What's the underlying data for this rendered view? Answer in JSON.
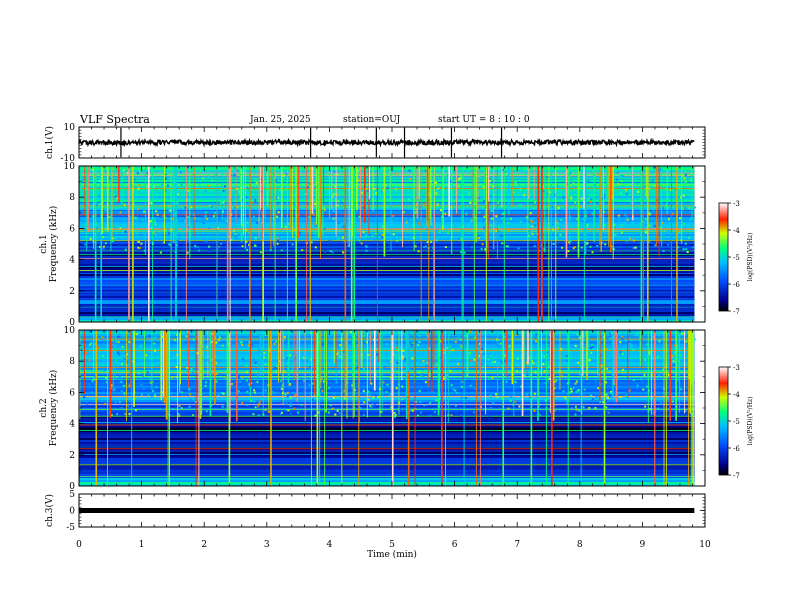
{
  "header": {
    "title": "VLF Spectra",
    "date": "Jan. 25, 2025",
    "station": "station=OUJ",
    "start": "start  UT =   8 : 10 : 0"
  },
  "colorbar": {
    "ticks": [
      "-3",
      "-4",
      "-5",
      "-6",
      "-7"
    ],
    "label": "log(PSD)(V²/Hz)"
  },
  "chart_data": [
    {
      "type": "line",
      "panel": "ch1-waveform",
      "ylabel": "ch.1(V)",
      "ylim": [
        -10,
        10
      ],
      "yticks": [
        "10",
        "-10"
      ],
      "baseline": 0,
      "spikes_min": [
        0.67,
        3.7,
        4.75,
        5.2,
        5.95,
        6.75
      ],
      "xlim": [
        0,
        10
      ]
    },
    {
      "type": "heatmap",
      "panel": "ch1-spectrogram",
      "ylabel": "ch.1 Frequency (kHz)",
      "ylim": [
        0,
        10
      ],
      "yticks": [
        "0",
        "2",
        "4",
        "6",
        "8",
        "10"
      ],
      "color_range": [
        -7,
        -3
      ],
      "xlim": [
        0,
        9.83
      ],
      "bands_khz": [
        {
          "lo": 0,
          "hi": 0.4,
          "v": -5.0
        },
        {
          "lo": 0.4,
          "hi": 1.2,
          "v": -6.4
        },
        {
          "lo": 1.2,
          "hi": 1.5,
          "v": -5.6
        },
        {
          "lo": 1.5,
          "hi": 2.5,
          "v": -6.3
        },
        {
          "lo": 2.5,
          "hi": 3.0,
          "v": -5.9
        },
        {
          "lo": 3.0,
          "hi": 4.6,
          "v": -6.5
        },
        {
          "lo": 4.6,
          "hi": 5.3,
          "v": -6.1
        },
        {
          "lo": 5.3,
          "hi": 7.2,
          "v": -5.4
        },
        {
          "lo": 7.2,
          "hi": 10,
          "v": -4.9
        }
      ]
    },
    {
      "type": "heatmap",
      "panel": "ch2-spectrogram",
      "ylabel": "ch.2 Frequency (kHz)",
      "ylim": [
        0,
        10
      ],
      "yticks": [
        "0",
        "2",
        "4",
        "6",
        "8",
        "10"
      ],
      "color_range": [
        -7,
        -3
      ],
      "xlim": [
        0,
        9.83
      ],
      "bands_khz": [
        {
          "lo": 0,
          "hi": 0.6,
          "v": -5.1
        },
        {
          "lo": 0.6,
          "hi": 1.8,
          "v": -6.2
        },
        {
          "lo": 1.8,
          "hi": 3.0,
          "v": -6.4
        },
        {
          "lo": 3.0,
          "hi": 4.5,
          "v": -6.6
        },
        {
          "lo": 4.5,
          "hi": 5.5,
          "v": -6.0
        },
        {
          "lo": 5.5,
          "hi": 7.2,
          "v": -5.5
        },
        {
          "lo": 7.2,
          "hi": 10,
          "v": -5.2
        }
      ]
    },
    {
      "type": "line",
      "panel": "ch3-waveform",
      "ylabel": "ch.3(V)",
      "ylim": [
        -5,
        5
      ],
      "yticks": [
        "5",
        "0",
        "-5"
      ],
      "baseline": 0,
      "xlim": [
        0,
        10
      ]
    }
  ],
  "xaxis": {
    "label": "Time (min)",
    "range": [
      0,
      10
    ],
    "ticks": [
      "0",
      "1",
      "2",
      "3",
      "4",
      "5",
      "6",
      "7",
      "8",
      "9",
      "10"
    ]
  }
}
